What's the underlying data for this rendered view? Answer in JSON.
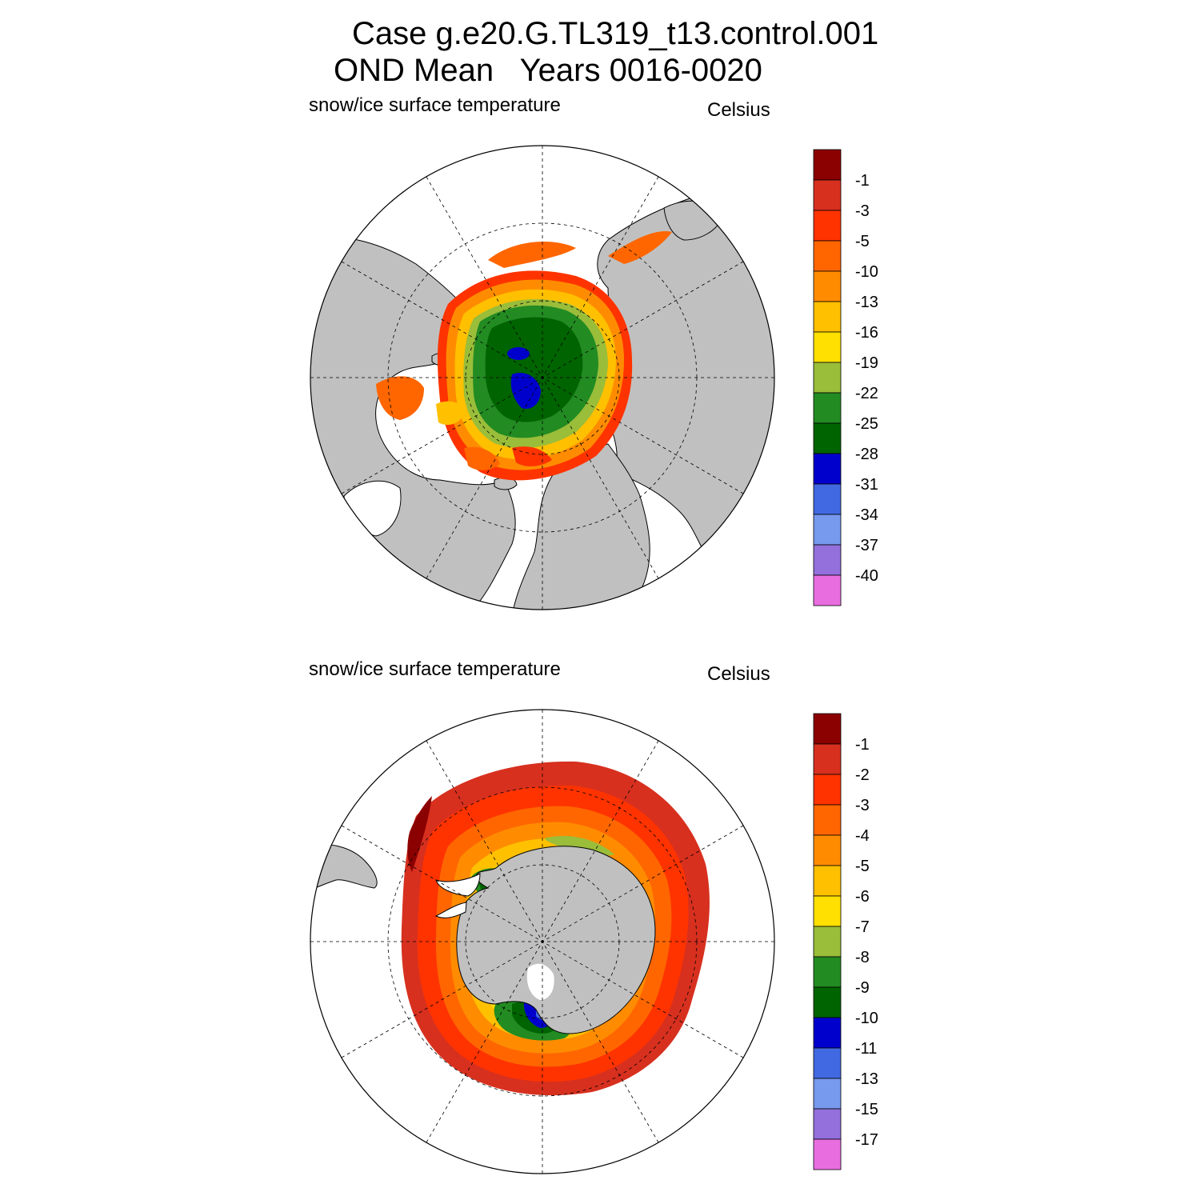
{
  "title_line1": "Case g.e20.G.TL319_t13.control.001",
  "title_line2": "OND Mean   Years 0016-0020",
  "panels": [
    {
      "hemisphere": "north",
      "field_label": "snow/ice surface temperature",
      "units_label": "Celsius",
      "colorbar": {
        "levels": [
          "-1",
          "-3",
          "-5",
          "-10",
          "-13",
          "-16",
          "-19",
          "-22",
          "-25",
          "-28",
          "-31",
          "-34",
          "-37",
          "-40"
        ],
        "colors": [
          "#8b0000",
          "#d7301f",
          "#ff3300",
          "#ff6600",
          "#ff8c00",
          "#ffc000",
          "#ffe000",
          "#9abd3a",
          "#228b22",
          "#006400",
          "#0000cd",
          "#4169e1",
          "#7799ee",
          "#9370db",
          "#e86ee0"
        ]
      }
    },
    {
      "hemisphere": "south",
      "field_label": "snow/ice surface temperature",
      "units_label": "Celsius",
      "colorbar": {
        "levels": [
          "-1",
          "-2",
          "-3",
          "-4",
          "-5",
          "-6",
          "-7",
          "-8",
          "-9",
          "-10",
          "-11",
          "-13",
          "-15",
          "-17"
        ],
        "colors": [
          "#8b0000",
          "#d7301f",
          "#ff3300",
          "#ff6600",
          "#ff8c00",
          "#ffc000",
          "#ffe000",
          "#9abd3a",
          "#228b22",
          "#006400",
          "#0000cd",
          "#4169e1",
          "#7799ee",
          "#9370db",
          "#e86ee0"
        ]
      }
    }
  ],
  "land_color": "#c0c0c0"
}
